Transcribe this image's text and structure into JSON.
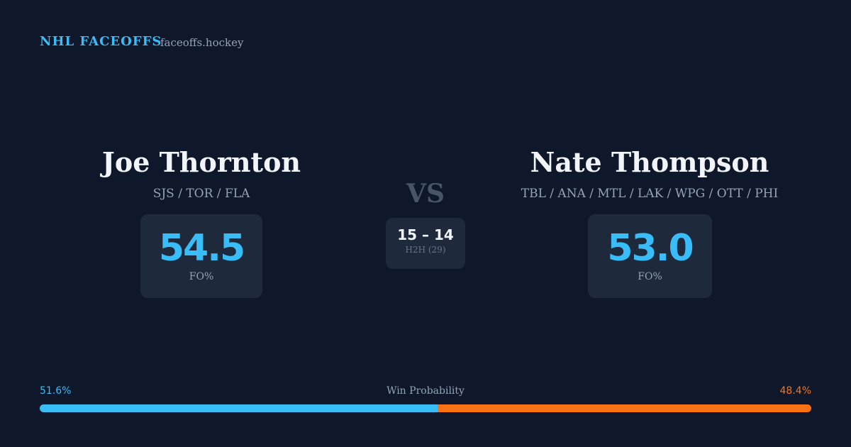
{
  "header": {
    "brand": "NHL FACEOFFS",
    "site": "faceoffs.hockey"
  },
  "players": [
    {
      "name": "Joe Thornton",
      "teams": "SJS / TOR / FLA",
      "fo_pct": "54.5",
      "fo_label": "FO%"
    },
    {
      "name": "Nate Thompson",
      "teams": "TBL / ANA / MTL / LAK / WPG / OTT / PHI",
      "fo_pct": "53.0",
      "fo_label": "FO%"
    }
  ],
  "versus": "VS",
  "h2h": {
    "score": "15 – 14",
    "label": "H2H (29)"
  },
  "win_probability": {
    "label": "Win Probability",
    "left": {
      "value": 51.6,
      "label": "51.6%",
      "color": "#38bdf8"
    },
    "right": {
      "value": 48.4,
      "label": "48.4%",
      "color": "#f97316"
    }
  }
}
